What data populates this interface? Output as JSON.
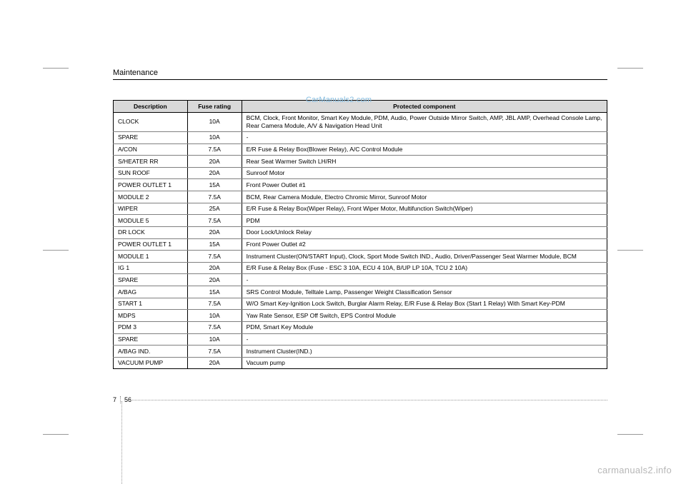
{
  "section_title": "Maintenance",
  "watermark": "CarManuals2.com",
  "footer_brand": "carmanuals2.info",
  "page": {
    "chapter": "7",
    "number": "56"
  },
  "table": {
    "type": "table",
    "columns": [
      "Description",
      "Fuse rating",
      "Protected component"
    ],
    "col_widths_pct": [
      15,
      11,
      74
    ],
    "header_bg": "#d9d9d9",
    "border_color": "#000000",
    "row_divider_color": "#808080",
    "font_size_pt": 8.5,
    "rows": [
      {
        "description": "CLOCK",
        "rating": "10A",
        "component": "BCM, Clock, Front Monitor, Smart Key Module, PDM, Audio, Power Outside Mirror Switch, AMP, JBL AMP, Overhead Console Lamp, Rear Camera Module, A/V & Navigation Head Unit"
      },
      {
        "description": "SPARE",
        "rating": "10A",
        "component": "-"
      },
      {
        "description": "A/CON",
        "rating": "7.5A",
        "component": "E/R Fuse & Relay Box(Blower Relay), A/C Control Module"
      },
      {
        "description": "S/HEATER RR",
        "rating": "20A",
        "component": "Rear Seat Warmer Switch LH/RH"
      },
      {
        "description": "SUN ROOF",
        "rating": "20A",
        "component": "Sunroof Motor"
      },
      {
        "description": "POWER OUTLET 1",
        "rating": "15A",
        "component": "Front Power Outlet #1"
      },
      {
        "description": "MODULE 2",
        "rating": "7.5A",
        "component": "BCM, Rear Camera Module, Electro Chromic Mirror, Sunroof Motor"
      },
      {
        "description": "WIPER",
        "rating": "25A",
        "component": "E/R Fuse & Relay Box(Wiper Relay), Front Wiper Motor, Multifunction Switch(Wiper)"
      },
      {
        "description": "MODULE 5",
        "rating": "7.5A",
        "component": "PDM"
      },
      {
        "description": "DR LOCK",
        "rating": "20A",
        "component": "Door Lock/Unlock Relay"
      },
      {
        "description": "POWER OUTLET 1",
        "rating": "15A",
        "component": "Front Power Outlet #2"
      },
      {
        "description": "MODULE 1",
        "rating": "7.5A",
        "component": "Instrument Cluster(ON/START Input), Clock, Sport Mode Switch IND., Audio, Driver/Passenger Seat Warmer Module, BCM"
      },
      {
        "description": "IG 1",
        "rating": "20A",
        "component": "E/R Fuse & Relay Box (Fuse - ESC 3 10A, ECU 4 10A, B/UP LP 10A, TCU 2 10A)"
      },
      {
        "description": "SPARE",
        "rating": "20A",
        "component": "-"
      },
      {
        "description": "A/BAG",
        "rating": "15A",
        "component": "SRS Control Module, Telltale Lamp, Passenger Weight Classification Sensor"
      },
      {
        "description": "START 1",
        "rating": "7.5A",
        "component": "W/O Smart Key-Ignition Lock Switch, Burglar Alarm Relay, E/R Fuse & Relay Box (Start 1 Relay) With Smart Key-PDM"
      },
      {
        "description": "MDPS",
        "rating": "10A",
        "component": "Yaw Rate Sensor, ESP Off Switch, EPS Control Module"
      },
      {
        "description": "PDM 3",
        "rating": "7.5A",
        "component": "PDM, Smart Key Module"
      },
      {
        "description": "SPARE",
        "rating": "10A",
        "component": "-"
      },
      {
        "description": "A/BAG IND.",
        "rating": "7.5A",
        "component": "Instrument Cluster(IND.)"
      },
      {
        "description": "VACUUM PUMP",
        "rating": "20A",
        "component": "Vacuum pump"
      }
    ]
  },
  "colors": {
    "text": "#000000",
    "watermark": "#86bde0",
    "footer": "#b7b7b7",
    "page_bg": "#ffffff"
  }
}
